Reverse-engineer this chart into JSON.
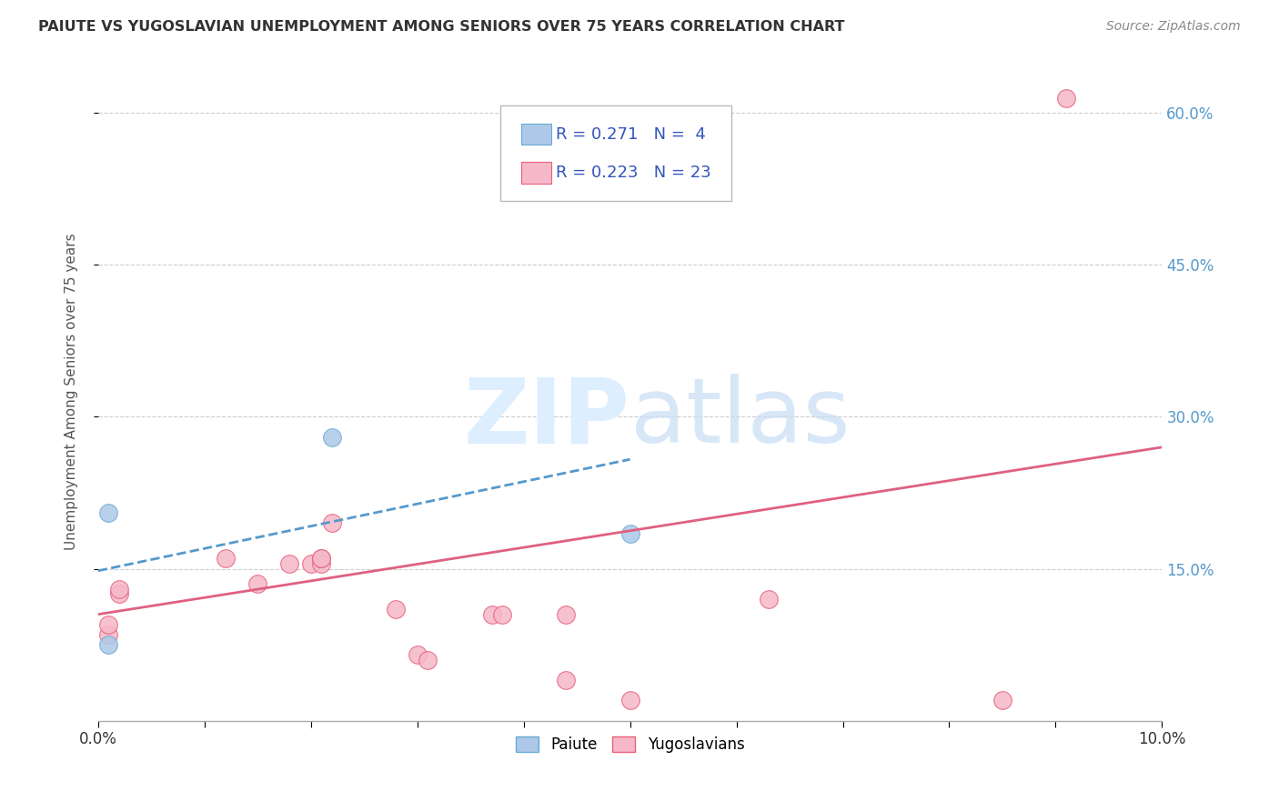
{
  "title": "PAIUTE VS YUGOSLAVIAN UNEMPLOYMENT AMONG SENIORS OVER 75 YEARS CORRELATION CHART",
  "source": "Source: ZipAtlas.com",
  "ylabel": "Unemployment Among Seniors over 75 years",
  "x_min": 0.0,
  "x_max": 0.1,
  "y_min": 0.0,
  "y_max": 0.65,
  "y_ticks": [
    0.15,
    0.3,
    0.45,
    0.6
  ],
  "y_tick_labels": [
    "15.0%",
    "30.0%",
    "45.0%",
    "60.0%"
  ],
  "x_ticks": [
    0.0,
    0.01,
    0.02,
    0.03,
    0.04,
    0.05,
    0.06,
    0.07,
    0.08,
    0.09,
    0.1
  ],
  "paiute_color": "#adc8e8",
  "paiute_edge_color": "#6aaad4",
  "yugoslavian_color": "#f5b8c8",
  "yugoslavian_edge_color": "#e8607a",
  "paiute_line_color": "#5599cc",
  "yugoslavian_line_color": "#e06080",
  "right_axis_color": "#5599cc",
  "legend_r_color": "#3355bb",
  "paiute_r": 0.271,
  "paiute_n": 4,
  "yugoslavian_r": 0.223,
  "yugoslavian_n": 23,
  "paiute_points_x": [
    0.001,
    0.001,
    0.022,
    0.05
  ],
  "paiute_points_y": [
    0.075,
    0.205,
    0.28,
    0.185
  ],
  "yugoslavian_points_x": [
    0.001,
    0.001,
    0.002,
    0.002,
    0.012,
    0.015,
    0.018,
    0.02,
    0.021,
    0.021,
    0.021,
    0.022,
    0.028,
    0.03,
    0.031,
    0.037,
    0.038,
    0.044,
    0.044,
    0.05,
    0.063,
    0.085,
    0.091
  ],
  "yugoslavian_points_y": [
    0.085,
    0.095,
    0.125,
    0.13,
    0.16,
    0.135,
    0.155,
    0.155,
    0.155,
    0.16,
    0.16,
    0.195,
    0.11,
    0.065,
    0.06,
    0.105,
    0.105,
    0.105,
    0.04,
    0.02,
    0.12,
    0.02,
    0.615
  ],
  "paiute_trendline_x": [
    0.0,
    0.05
  ],
  "paiute_trendline_y": [
    0.148,
    0.258
  ],
  "yugoslavian_trendline_x": [
    0.0,
    0.1
  ],
  "yugoslavian_trendline_y": [
    0.105,
    0.27
  ],
  "background_color": "#ffffff",
  "grid_color": "#cccccc"
}
